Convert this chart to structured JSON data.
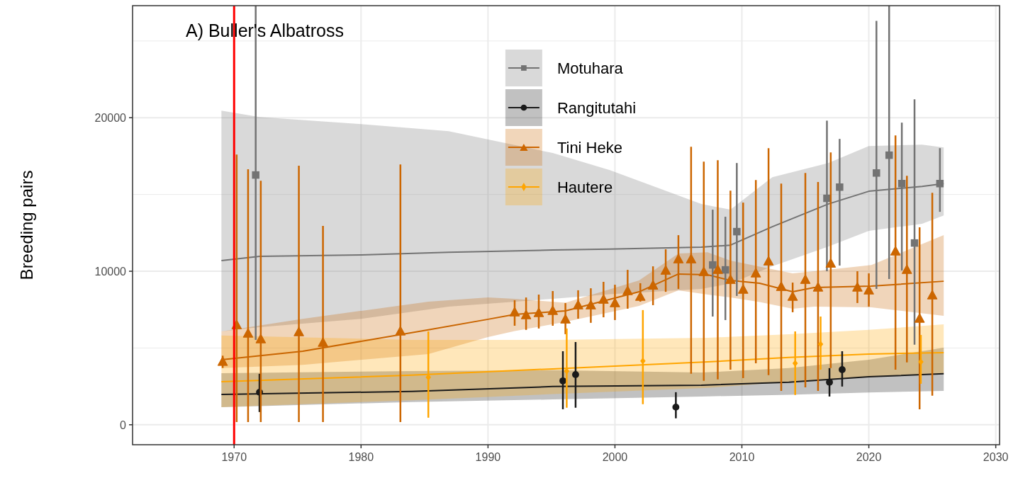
{
  "chart_data": {
    "type": "scatter",
    "title": "A) Buller's Albatross",
    "ylabel": "Breeding pairs",
    "xlim": [
      1962,
      2030.3
    ],
    "ylim": [
      -1300,
      27300
    ],
    "xticks": [
      1970,
      1980,
      1990,
      2000,
      2010,
      2020,
      2030
    ],
    "yticks": [
      0,
      10000,
      20000
    ],
    "grid": true,
    "legend": "top",
    "ref_lines": [
      {
        "axis": "x",
        "value": 1970,
        "color": "#ff0000"
      }
    ],
    "series": [
      {
        "type": "line",
        "color": "#737373",
        "x": [
          1969,
          1972,
          1980,
          1986.9,
          1995.1,
          1999.6,
          2006.8,
          2009.1,
          2012.4,
          2016.8,
          2020,
          2024.2,
          2025.9
        ],
        "values": [
          10690,
          10970,
          11060,
          11240,
          11380,
          11440,
          11570,
          11700,
          12900,
          14380,
          15210,
          15530,
          15710
        ],
        "lower": [
          6080,
          6360,
          6900,
          7700,
          8200,
          8500,
          8850,
          9200,
          10320,
          11610,
          12630,
          13090,
          13640
        ],
        "upper": [
          20460,
          20050,
          19580,
          19120,
          17700,
          16590,
          14380,
          14010,
          16130,
          17050,
          18160,
          18250,
          18060
        ]
      },
      {
        "type": "line",
        "color": "#1a1a1a",
        "x": [
          1969,
          1984,
          1995.1,
          2006.8,
          2013.7,
          2020,
          2025.9
        ],
        "values": [
          1980,
          2170,
          2490,
          2580,
          2770,
          3130,
          3320
        ],
        "lower": [
          1150,
          1480,
          1650,
          1840,
          1950,
          2100,
          2210
        ],
        "upper": [
          3360,
          3500,
          3550,
          3400,
          3690,
          4240,
          5020
        ]
      },
      {
        "type": "line",
        "color": "#c96500",
        "x": [
          1969,
          1975.4,
          1985.3,
          1990,
          1992.1,
          1996.1,
          2001.9,
          2005,
          2007.3,
          2009.1,
          2011.4,
          2014,
          2015.7,
          2020.2,
          2025.9
        ],
        "values": [
          4240,
          4790,
          6180,
          6870,
          7190,
          7420,
          8660,
          9820,
          9770,
          9400,
          9220,
          8660,
          8940,
          9030,
          9350
        ],
        "lower": [
          3690,
          3900,
          4610,
          5710,
          6100,
          6700,
          7740,
          8760,
          8480,
          8290,
          8000,
          7560,
          7700,
          7650,
          7100
        ],
        "upper": [
          6080,
          6900,
          8020,
          8290,
          8200,
          7950,
          9400,
          11150,
          11240,
          10690,
          10300,
          9860,
          10000,
          10410,
          12350
        ]
      },
      {
        "type": "line",
        "color": "#ffa500",
        "x": [
          1969,
          1984,
          1995.1,
          2007.3,
          2013.7,
          2020,
          2025.9
        ],
        "values": [
          2810,
          3230,
          3640,
          4100,
          4380,
          4610,
          4700
        ],
        "lower": [
          1150,
          1600,
          2000,
          2400,
          2800,
          3100,
          3320
        ],
        "upper": [
          5810,
          5530,
          5530,
          5670,
          5900,
          6180,
          6540
        ]
      },
      {
        "name": "Motuhara",
        "marker": "square",
        "color": "#737373",
        "x": [
          1971.7,
          2007.7,
          2008.7,
          2009.6,
          2016.7,
          2017.7,
          2020.6,
          2021.6,
          2022.6,
          2023.6,
          2025.6
        ],
        "values": [
          16270,
          10410,
          10090,
          12580,
          14750,
          15480,
          16400,
          17560,
          15710,
          11840,
          15710
        ],
        "errors": [
          [
            5530,
            27300
          ],
          [
            7050,
            14010
          ],
          [
            6820,
            13550
          ],
          [
            8390,
            17050
          ],
          [
            10000,
            19810
          ],
          [
            10370,
            18620
          ],
          [
            8850,
            26310
          ],
          [
            9490,
            27300
          ],
          [
            10050,
            19680
          ],
          [
            5210,
            21200
          ],
          [
            13870,
            18020
          ]
        ]
      },
      {
        "name": "Rangitutahi",
        "marker": "circle",
        "color": "#1a1a1a",
        "x": [
          1972,
          1995.9,
          1996.9,
          2004.8,
          2016.9,
          2017.9
        ],
        "values": [
          2120,
          2860,
          3270,
          1150,
          2770,
          3590
        ],
        "errors": [
          [
            830,
            3320
          ],
          [
            1010,
            4790
          ],
          [
            1110,
            5390
          ],
          [
            420,
            2120
          ],
          [
            1840,
            3690
          ],
          [
            2490,
            4790
          ]
        ]
      },
      {
        "name": "Tini Heke",
        "marker": "triangle",
        "color": "#cc6600",
        "x": [
          1969.1,
          1970.2,
          1971.1,
          1972.1,
          1975.1,
          1977,
          1983.1,
          1992.1,
          1993,
          1994,
          1995.1,
          1996.1,
          1997.1,
          1998.1,
          1999.1,
          2000,
          2001,
          2002,
          2003,
          2004,
          2005,
          2006,
          2007,
          2008.1,
          2009.1,
          2010.1,
          2011.1,
          2012.1,
          2013.1,
          2014,
          2015,
          2016,
          2017,
          2019.1,
          2020,
          2022.1,
          2023,
          2024,
          2025
        ],
        "values": [
          4150,
          6540,
          5990,
          5620,
          6080,
          5390,
          6130,
          7370,
          7190,
          7330,
          7470,
          6910,
          7830,
          7830,
          8200,
          7970,
          8760,
          8390,
          9120,
          10090,
          10830,
          10830,
          10000,
          10140,
          9490,
          8850,
          9910,
          10690,
          9030,
          8390,
          9490,
          8990,
          10550,
          8990,
          8800,
          11340,
          10140,
          6960,
          8480
        ],
        "errors": [
          [
            3700,
            4500
          ],
          [
            180,
            17600
          ],
          [
            180,
            16640
          ],
          [
            180,
            15900
          ],
          [
            180,
            16870
          ],
          [
            180,
            12950
          ],
          [
            180,
            16960
          ],
          [
            6450,
            8110
          ],
          [
            6180,
            8290
          ],
          [
            6270,
            8480
          ],
          [
            6450,
            8710
          ],
          [
            5900,
            7930
          ],
          [
            6910,
            8760
          ],
          [
            6640,
            8890
          ],
          [
            7000,
            9310
          ],
          [
            6820,
            9120
          ],
          [
            7560,
            10090
          ],
          [
            8020,
            9220
          ],
          [
            7790,
            10320
          ],
          [
            8660,
            11430
          ],
          [
            8850,
            12350
          ],
          [
            3320,
            18110
          ],
          [
            2860,
            17140
          ],
          [
            2950,
            17230
          ],
          [
            3590,
            15250
          ],
          [
            3040,
            14470
          ],
          [
            4010,
            15940
          ],
          [
            3230,
            18020
          ],
          [
            2210,
            15710
          ],
          [
            7330,
            9260
          ],
          [
            2440,
            16400
          ],
          [
            2210,
            15810
          ],
          [
            3690,
            17740
          ],
          [
            7930,
            10000
          ],
          [
            7700,
            9860
          ],
          [
            3590,
            18850
          ],
          [
            4060,
            16220
          ],
          [
            1010,
            12860
          ],
          [
            1890,
            15110
          ]
        ]
      },
      {
        "name": "Hautere",
        "marker": "diamond",
        "color": "#ffa500",
        "x": [
          1985.3,
          1996.2,
          2002.2,
          2014.2,
          2016.2,
          2024.1
        ],
        "values": [
          3090,
          3500,
          4150,
          4010,
          5250,
          4100
        ],
        "errors": [
          [
            460,
            6080
          ],
          [
            1110,
            6270
          ],
          [
            1340,
            7470
          ],
          [
            1940,
            6080
          ],
          [
            3590,
            7050
          ],
          [
            2670,
            5850
          ]
        ]
      }
    ]
  }
}
